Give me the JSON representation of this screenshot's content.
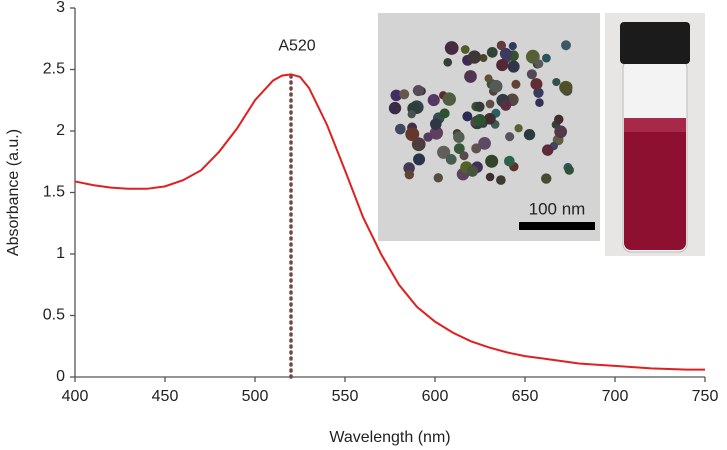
{
  "chart_data": {
    "type": "line",
    "x_label": "Wavelength (nm)",
    "y_label": "Absorbance (a.u.)",
    "x": [
      400,
      410,
      420,
      430,
      440,
      450,
      460,
      470,
      480,
      490,
      500,
      510,
      515,
      520,
      525,
      530,
      540,
      550,
      560,
      570,
      580,
      590,
      600,
      610,
      620,
      630,
      640,
      650,
      660,
      670,
      680,
      690,
      700,
      710,
      720,
      730,
      740,
      750
    ],
    "values": [
      1.59,
      1.56,
      1.54,
      1.53,
      1.53,
      1.55,
      1.6,
      1.68,
      1.83,
      2.02,
      2.25,
      2.41,
      2.45,
      2.46,
      2.44,
      2.35,
      2.05,
      1.68,
      1.3,
      1.0,
      0.75,
      0.57,
      0.45,
      0.36,
      0.29,
      0.24,
      0.2,
      0.17,
      0.15,
      0.13,
      0.11,
      0.1,
      0.09,
      0.08,
      0.07,
      0.065,
      0.06,
      0.06
    ],
    "color": "#e02020",
    "xlim": [
      400,
      750
    ],
    "xticks": [
      400,
      450,
      500,
      550,
      600,
      650,
      700,
      750
    ],
    "ylim": [
      0,
      3
    ],
    "yticks": [
      0,
      0.5,
      1,
      1.5,
      2,
      2.5,
      3
    ],
    "marker_line": {
      "x": 520,
      "y": 2.46,
      "label": "A520"
    },
    "scale_bar_label": "100 nm"
  }
}
